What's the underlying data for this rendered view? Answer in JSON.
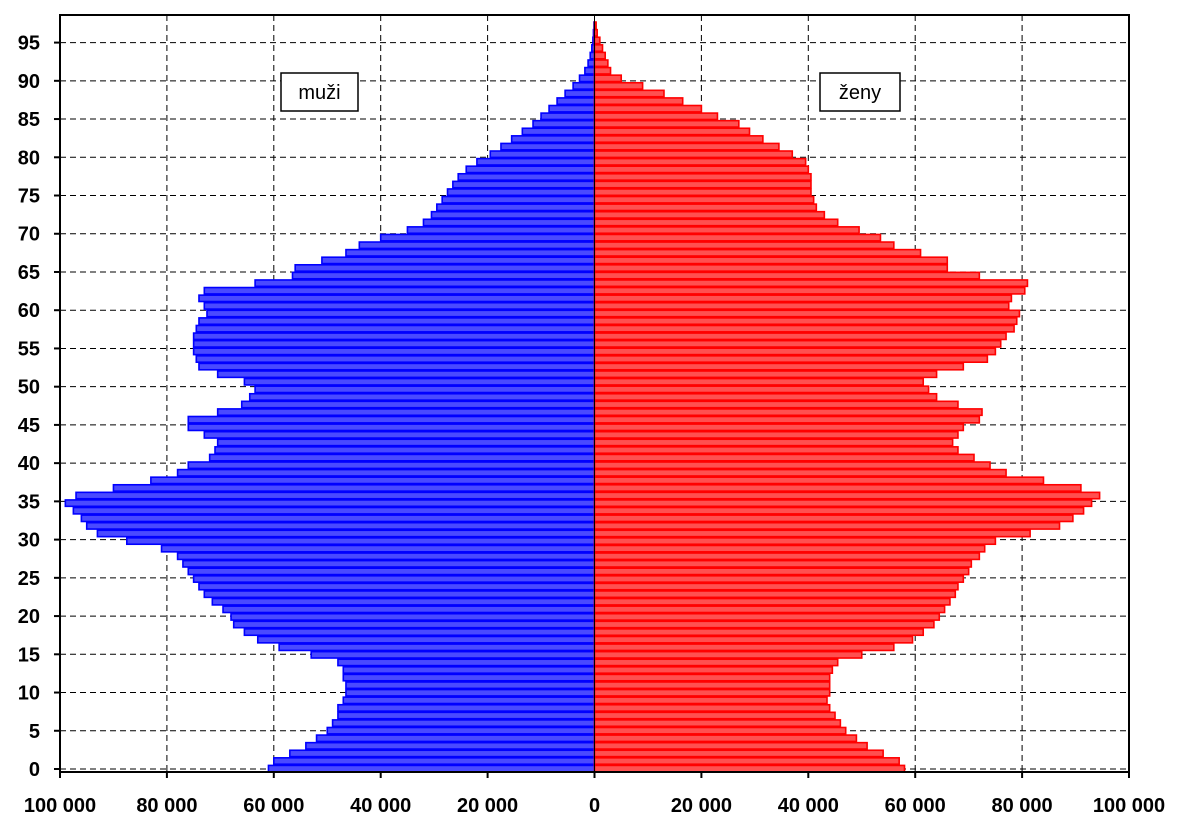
{
  "chart_data": {
    "type": "bar",
    "orientation": "horizontal",
    "title": "",
    "xlabel": "",
    "ylabel": "",
    "xlim": [
      -100000,
      100000
    ],
    "ylim": [
      0,
      99
    ],
    "grid": true,
    "x_tick_values": [
      -100000,
      -80000,
      -60000,
      -40000,
      -20000,
      0,
      20000,
      40000,
      60000,
      80000,
      100000
    ],
    "x_tick_labels": [
      "100 000",
      "80 000",
      "60 000",
      "40 000",
      "20 000",
      "0",
      "20 000",
      "40 000",
      "60 000",
      "80 000",
      "100 000"
    ],
    "y_tick_values": [
      0,
      5,
      10,
      15,
      20,
      25,
      30,
      35,
      40,
      45,
      50,
      55,
      60,
      65,
      70,
      75,
      80,
      85,
      90,
      95
    ],
    "y_tick_labels": [
      "0",
      "5",
      "10",
      "15",
      "20",
      "25",
      "30",
      "35",
      "40",
      "45",
      "50",
      "55",
      "60",
      "65",
      "70",
      "75",
      "80",
      "85",
      "90",
      "95"
    ],
    "categories": [
      0,
      1,
      2,
      3,
      4,
      5,
      6,
      7,
      8,
      9,
      10,
      11,
      12,
      13,
      14,
      15,
      16,
      17,
      18,
      19,
      20,
      21,
      22,
      23,
      24,
      25,
      26,
      27,
      28,
      29,
      30,
      31,
      32,
      33,
      34,
      35,
      36,
      37,
      38,
      39,
      40,
      41,
      42,
      43,
      44,
      45,
      46,
      47,
      48,
      49,
      50,
      51,
      52,
      53,
      54,
      55,
      56,
      57,
      58,
      59,
      60,
      61,
      62,
      63,
      64,
      65,
      66,
      67,
      68,
      69,
      70,
      71,
      72,
      73,
      74,
      75,
      76,
      77,
      78,
      79,
      80,
      81,
      82,
      83,
      84,
      85,
      86,
      87,
      88,
      89,
      90,
      91,
      92,
      93,
      94,
      95,
      96,
      97,
      98
    ],
    "series": [
      {
        "name": "muži",
        "side": "left",
        "color": "#0000ff",
        "fill": "#4a4aff",
        "values": [
          61000,
          60000,
          57000,
          54000,
          52000,
          50000,
          49000,
          48000,
          48000,
          47000,
          46500,
          46500,
          47000,
          47000,
          48000,
          53000,
          59000,
          63000,
          65500,
          67500,
          68000,
          69500,
          71500,
          73000,
          74000,
          75000,
          76000,
          77000,
          78000,
          81000,
          87500,
          93000,
          95000,
          96000,
          97500,
          99000,
          97000,
          90000,
          83000,
          78000,
          76000,
          72000,
          71000,
          70500,
          73000,
          76000,
          76000,
          70500,
          66000,
          64500,
          63500,
          65500,
          70500,
          74000,
          74500,
          75000,
          75000,
          75000,
          74500,
          74000,
          72500,
          73000,
          74000,
          73000,
          63500,
          56500,
          56000,
          51000,
          46500,
          44000,
          40000,
          35000,
          32000,
          30500,
          29500,
          28500,
          27500,
          26500,
          25500,
          24000,
          22000,
          19500,
          17500,
          15500,
          13500,
          11500,
          10000,
          8500,
          7000,
          5500,
          4000,
          2800,
          1800,
          1200,
          800,
          500,
          300,
          200,
          100
        ]
      },
      {
        "name": "ženy",
        "side": "right",
        "color": "#ff0000",
        "fill": "#ff5050",
        "values": [
          58000,
          57000,
          54000,
          51000,
          49000,
          47000,
          46000,
          45000,
          44000,
          43500,
          44000,
          44000,
          44000,
          44500,
          45500,
          50000,
          56000,
          59500,
          61500,
          63500,
          64500,
          65500,
          66500,
          67500,
          68000,
          69000,
          70000,
          70500,
          72000,
          73000,
          75000,
          81500,
          87000,
          89500,
          91500,
          93000,
          94500,
          91000,
          84000,
          77000,
          74000,
          71000,
          68000,
          67000,
          68000,
          69000,
          72000,
          72500,
          68000,
          64000,
          62500,
          61500,
          64000,
          69000,
          73500,
          75000,
          76000,
          77000,
          78500,
          79000,
          79500,
          77500,
          78000,
          80500,
          81000,
          72000,
          66000,
          66000,
          61000,
          56000,
          53500,
          49500,
          45500,
          43000,
          41500,
          41000,
          40500,
          40500,
          40500,
          40000,
          39500,
          37000,
          34500,
          31500,
          29000,
          27000,
          23000,
          20000,
          16500,
          13000,
          9000,
          5000,
          3000,
          2500,
          2000,
          1500,
          1000,
          500,
          300
        ]
      }
    ],
    "legend": [
      {
        "label": "muži",
        "placement": "upper-left"
      },
      {
        "label": "ženy",
        "placement": "upper-right"
      }
    ]
  }
}
